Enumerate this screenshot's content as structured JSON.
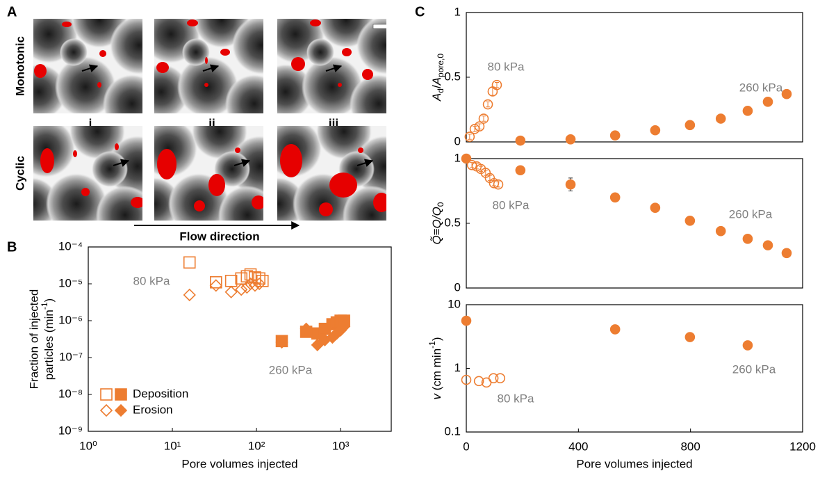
{
  "panel_labels": [
    "A",
    "B",
    "C"
  ],
  "panel_a": {
    "rows": [
      "Monotonic",
      "Cyclic"
    ],
    "columns": [
      "i",
      "ii",
      "iii"
    ],
    "arrow_label": "Flow direction"
  },
  "chart_data": [
    {
      "type": "scatter",
      "xlog": true,
      "ylog": true,
      "x_label": "Pore volumes injected",
      "y_label": [
        "Fraction of injected",
        "particles (min",
        "-1",
        ")"
      ],
      "xlim": [
        1,
        4000
      ],
      "ylim": [
        1e-09,
        0.0001
      ],
      "xticks": [
        {
          "value": 1,
          "label": "10⁰"
        },
        {
          "value": 10,
          "label": "10¹"
        },
        {
          "value": 100,
          "label": "10²"
        },
        {
          "value": 1000,
          "label": "10³"
        }
      ],
      "yticks": [
        {
          "value": 1e-09,
          "label": "10⁻⁹"
        },
        {
          "value": 1e-08,
          "label": "10⁻⁸"
        },
        {
          "value": 1e-07,
          "label": "10⁻⁷"
        },
        {
          "value": 1e-06,
          "label": "10⁻⁶"
        },
        {
          "value": 1e-05,
          "label": "10⁻⁵"
        },
        {
          "value": 0.0001,
          "label": "10⁻⁴"
        }
      ],
      "series": [
        {
          "marker": "square",
          "filled": false,
          "color": "#ed7d31",
          "x": [
            16,
            33,
            50,
            66,
            77,
            85,
            96,
            108,
            118
          ],
          "values": [
            3.8e-05,
            1.1e-05,
            1.2e-05,
            1.4e-05,
            1.6e-05,
            1.8e-05,
            1.5e-05,
            1.4e-05,
            1.2e-05
          ]
        },
        {
          "marker": "diamond",
          "filled": false,
          "color": "#ed7d31",
          "x": [
            16,
            33,
            50,
            66,
            77,
            85,
            96,
            108
          ],
          "values": [
            5e-06,
            9e-06,
            6e-06,
            7e-06,
            8e-06,
            1e-05,
            9e-06,
            1e-05
          ]
        },
        {
          "marker": "square",
          "filled": true,
          "color": "#ed7d31",
          "x": [
            200,
            390,
            530,
            650,
            800,
            900,
            1000,
            1100
          ],
          "values": [
            2.8e-07,
            5e-07,
            4.5e-07,
            6e-07,
            8e-07,
            9e-07,
            1e-06,
            1e-06
          ]
        },
        {
          "marker": "diamond",
          "filled": true,
          "color": "#ed7d31",
          "x": [
            200,
            390,
            530,
            650,
            800,
            900,
            1000,
            1100
          ],
          "values": [
            2.6e-07,
            6e-07,
            2.2e-07,
            3e-07,
            3.5e-07,
            4.5e-07,
            5.5e-07,
            7e-07
          ]
        }
      ],
      "legend": [
        "Deposition",
        "Erosion"
      ],
      "legend_position": "lower left",
      "annotations": [
        "80 kPa",
        "260 kPa"
      ]
    },
    {
      "type": "scatter",
      "y_label": [
        "A",
        "d",
        "/",
        "A",
        "pore,0"
      ],
      "xlim": [
        0,
        1200
      ],
      "ylim": [
        0,
        1
      ],
      "yticks": [
        0,
        0.5,
        1
      ],
      "series": [
        {
          "marker": "circle",
          "filled": false,
          "color": "#ed7d31",
          "x": [
            12,
            30,
            47,
            62,
            77,
            94,
            109
          ],
          "values": [
            0.04,
            0.1,
            0.12,
            0.18,
            0.29,
            0.39,
            0.44
          ],
          "errors": [
            0.02,
            0.02,
            0.02,
            0.02,
            0.02,
            0.03,
            0.02
          ]
        },
        {
          "marker": "circle",
          "filled": true,
          "color": "#ed7d31",
          "x": [
            193,
            372,
            531,
            674,
            798,
            908,
            1004,
            1076,
            1143
          ],
          "values": [
            0.01,
            0.02,
            0.05,
            0.09,
            0.13,
            0.18,
            0.24,
            0.31,
            0.37
          ],
          "errors": [
            0.01,
            0.01,
            0.01,
            0.01,
            0.01,
            0.01,
            0.01,
            0.02,
            0.03
          ]
        }
      ],
      "annotations": [
        "80 kPa",
        "260 kPa"
      ]
    },
    {
      "type": "scatter",
      "y_label": [
        "Q̃≡Q/Q",
        "0"
      ],
      "xlim": [
        0,
        1200
      ],
      "ylim": [
        0,
        1
      ],
      "yticks": [
        0,
        0.5,
        1
      ],
      "series": [
        {
          "marker": "circle",
          "filled": false,
          "color": "#ed7d31",
          "x": [
            20,
            37,
            52,
            69,
            84,
            99,
            114
          ],
          "values": [
            0.95,
            0.94,
            0.92,
            0.89,
            0.85,
            0.81,
            0.8
          ],
          "errors": [
            0.02,
            0.02,
            0.02,
            0.02,
            0.02,
            0.02,
            0.02
          ]
        },
        {
          "marker": "circle",
          "filled": true,
          "color": "#ed7d31",
          "x": [
            0,
            193,
            372,
            531,
            674,
            798,
            908,
            1004,
            1076,
            1143
          ],
          "values": [
            1,
            0.91,
            0.8,
            0.7,
            0.62,
            0.52,
            0.44,
            0.38,
            0.33,
            0.27
          ],
          "errors": [
            0.01,
            0.03,
            0.05,
            0.03,
            0.03,
            0.03,
            0.01,
            0.01,
            0.01,
            0.01
          ]
        }
      ],
      "annotations": [
        "80 kPa",
        "260 kPa"
      ]
    },
    {
      "type": "scatter",
      "ylog": true,
      "x_label": "Pore volumes injected",
      "y_label": [
        "v",
        " (cm min",
        "-1",
        ")"
      ],
      "xlim": [
        0,
        1200
      ],
      "ylim": [
        0.1,
        10
      ],
      "xticks": [
        0,
        400,
        800,
        1200
      ],
      "yticks": [
        0.1,
        1,
        10
      ],
      "series": [
        {
          "marker": "circle",
          "filled": false,
          "color": "#ed7d31",
          "x": [
            0,
            45,
            72,
            97,
            121
          ],
          "values": [
            0.66,
            0.63,
            0.6,
            0.7,
            0.7
          ]
        },
        {
          "marker": "circle",
          "filled": true,
          "color": "#ed7d31",
          "x": [
            0,
            531,
            798,
            1004
          ],
          "values": [
            5.6,
            4.1,
            3.1,
            2.3
          ]
        }
      ],
      "annotations": [
        "80 kPa",
        "260 kPa"
      ]
    }
  ]
}
